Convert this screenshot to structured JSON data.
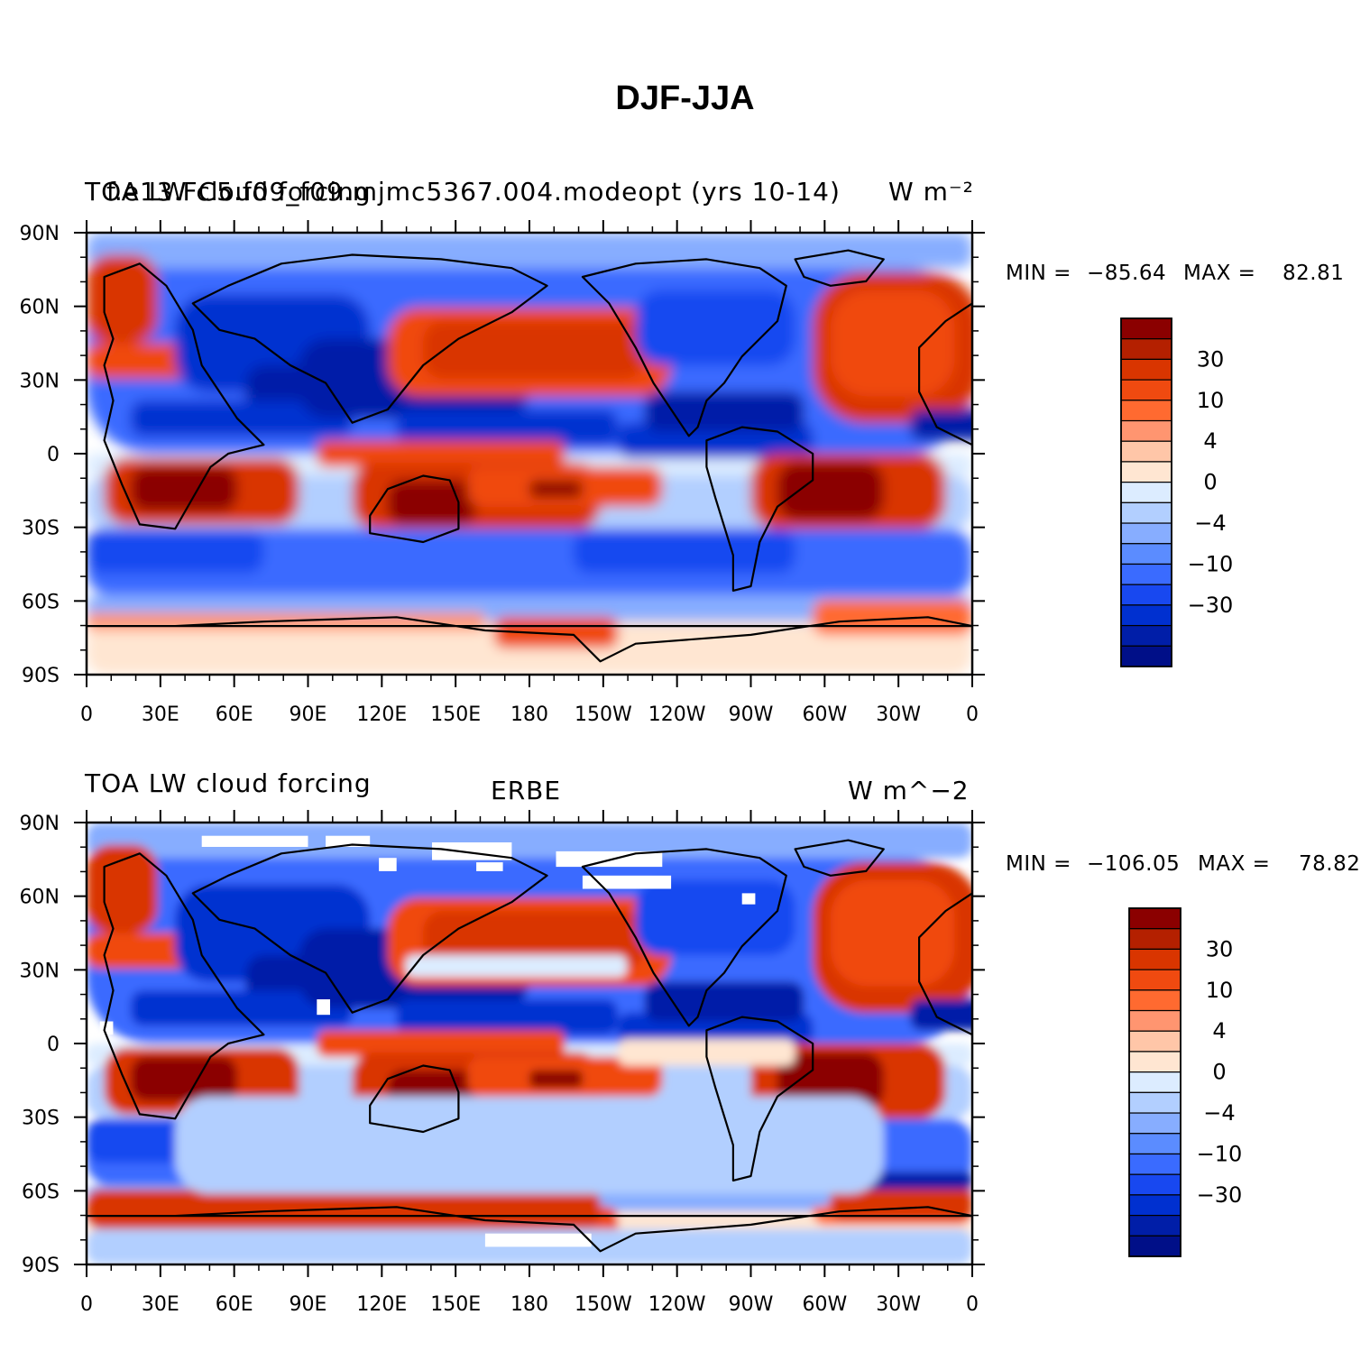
{
  "page_title": "DJF-JJA",
  "contour_levels": [
    -50,
    -40,
    -30,
    -20,
    -15,
    -10,
    -6,
    -4,
    -2,
    0,
    2,
    4,
    6,
    10,
    15,
    20,
    30,
    40,
    50
  ],
  "colorbar_labels": [
    "30",
    "10",
    "4",
    "0",
    "−4",
    "−10",
    "−30"
  ],
  "colors": [
    "#8b0000",
    "#b42000",
    "#d93500",
    "#f04a10",
    "#ff6a30",
    "#ff9570",
    "#ffc6a8",
    "#ffe6d2",
    "#dcecff",
    "#b2cfff",
    "#87adff",
    "#5b8cff",
    "#3a6bff",
    "#1848f0",
    "#0030d0",
    "#001ea8",
    "#000f88"
  ],
  "lat_labels": [
    "90N",
    "60N",
    "30N",
    "0",
    "30S",
    "60S",
    "90S"
  ],
  "lon_labels": [
    "0",
    "30E",
    "60E",
    "90E",
    "120E",
    "150E",
    "180",
    "150W",
    "120W",
    "90W",
    "60W",
    "30W",
    "0"
  ],
  "panels": [
    {
      "left_title": "TOA LW cloud forcing",
      "center_title": "f.e13.FC5.f09_f09.mjmc5367.004.modeopt (yrs 10-14)",
      "units": "W m⁻²",
      "min_label": "MIN =",
      "min_value": "−85.64",
      "max_label": "MAX =",
      "max_value": "82.81",
      "has_missing_data": false
    },
    {
      "left_title": "TOA LW cloud forcing",
      "center_title": "ERBE",
      "units": "W m^−2",
      "min_label": "MIN =",
      "min_value": "−106.05",
      "max_label": "MAX =",
      "max_value": "78.82",
      "has_missing_data": true
    }
  ]
}
